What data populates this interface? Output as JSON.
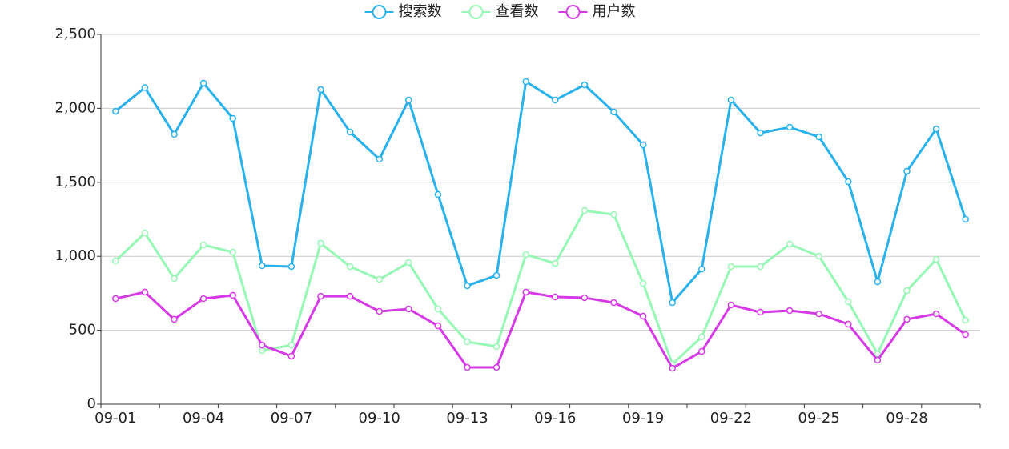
{
  "chart_data": {
    "type": "line",
    "categories": [
      "09-01",
      null,
      null,
      "09-04",
      null,
      null,
      "09-07",
      null,
      null,
      "09-10",
      null,
      null,
      "09-13",
      null,
      null,
      "09-16",
      null,
      null,
      "09-19",
      null,
      null,
      "09-22",
      null,
      null,
      "09-25",
      null,
      null,
      "09-28",
      null,
      null
    ],
    "series": [
      {
        "name": "搜索数",
        "color": "#29b1ec",
        "values": [
          1980,
          2140,
          1824,
          2170,
          1932,
          936,
          931,
          2127,
          1840,
          1656,
          2056,
          1418,
          801,
          871,
          2181,
          2056,
          2159,
          1975,
          1753,
          687,
          914,
          2056,
          1834,
          1872,
          1807,
          1504,
          828,
          1575,
          1861,
          1250
        ]
      },
      {
        "name": "查看数",
        "color": "#97f7b5",
        "values": [
          969,
          1158,
          850,
          1077,
          1028,
          363,
          400,
          1088,
          931,
          844,
          958,
          644,
          422,
          390,
          1012,
          952,
          1309,
          1282,
          817,
          271,
          455,
          931,
          931,
          1082,
          1001,
          693,
          341,
          768,
          979,
          568
        ]
      },
      {
        "name": "用户数",
        "color": "#d63ae6",
        "values": [
          714,
          758,
          574,
          714,
          736,
          400,
          325,
          730,
          730,
          628,
          644,
          530,
          249,
          249,
          758,
          725,
          720,
          687,
          595,
          243,
          357,
          671,
          622,
          633,
          611,
          541,
          298,
          574,
          611,
          471
        ]
      }
    ],
    "ylim": [
      0,
      2500
    ],
    "yticks": [
      0,
      {
        "value": 500,
        "label": "500"
      },
      {
        "value": 1000,
        "label": "1,000"
      },
      {
        "value": 1500,
        "label": "1,500"
      },
      {
        "value": 2000,
        "label": "2,000"
      },
      {
        "value": 2500,
        "label": "2,500"
      }
    ],
    "grid": true
  }
}
